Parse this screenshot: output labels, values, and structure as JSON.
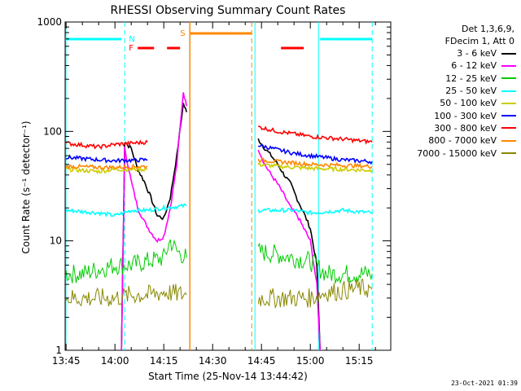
{
  "chart_data": {
    "type": "line",
    "title": "RHESSI Observing Summary Count Rates",
    "xlabel": "Start Time (25-Nov-14 13:44:42)",
    "ylabel": "Count Rate (s⁻¹ detector⁻¹)",
    "y_scale": "log",
    "ylim": [
      1,
      1000
    ],
    "xlim": [
      "13:44",
      "15:25"
    ],
    "x_ticks": [
      "13:45",
      "14:00",
      "14:15",
      "14:30",
      "14:45",
      "15:00",
      "15:15"
    ],
    "y_ticks": [
      "1",
      "10",
      "100",
      "1000"
    ],
    "legend_header": [
      "Det 1,3,6,9,",
      "FDecim 1, Att 0"
    ],
    "legend_position": "right",
    "flags": {
      "N_label": "N",
      "F_label": "F",
      "S_label": "S",
      "saa_start": "14:23",
      "saa_end": "14:42",
      "night_end": "14:03",
      "night_start": "14:43",
      "night2_end": "15:03",
      "night2_start": "15:19",
      "flare_segments": [
        [
          "14:07",
          "14:12"
        ],
        [
          "14:16",
          "14:20"
        ],
        [
          "14:51",
          "14:58"
        ]
      ]
    },
    "series": [
      {
        "name": "3 - 6 keV",
        "color": "#000000",
        "points": [
          [
            "14:02",
            1
          ],
          [
            "14:03",
            80
          ],
          [
            "14:05",
            70
          ],
          [
            "14:07",
            45
          ],
          [
            "14:09",
            35
          ],
          [
            "14:11",
            25
          ],
          [
            "14:13",
            17
          ],
          [
            "14:15",
            16
          ],
          [
            "14:17",
            25
          ],
          [
            "14:19",
            60
          ],
          [
            "14:21",
            180
          ],
          [
            "14:22",
            150
          ],
          [
            "14:44",
            85
          ],
          [
            "14:46",
            70
          ],
          [
            "14:48",
            60
          ],
          [
            "14:50",
            50
          ],
          [
            "14:52",
            40
          ],
          [
            "14:54",
            33
          ],
          [
            "14:56",
            24
          ],
          [
            "14:58",
            18
          ],
          [
            "15:00",
            13
          ],
          [
            "15:02",
            6
          ],
          [
            "15:03",
            1
          ]
        ]
      },
      {
        "name": "6 - 12 keV",
        "color": "#ff00ff",
        "points": [
          [
            "14:02",
            1
          ],
          [
            "14:03",
            70
          ],
          [
            "14:05",
            35
          ],
          [
            "14:07",
            20
          ],
          [
            "14:09",
            15
          ],
          [
            "14:11",
            12
          ],
          [
            "14:13",
            10
          ],
          [
            "14:15",
            11
          ],
          [
            "14:17",
            20
          ],
          [
            "14:19",
            50
          ],
          [
            "14:21",
            230
          ],
          [
            "14:22",
            170
          ],
          [
            "14:44",
            70
          ],
          [
            "14:46",
            50
          ],
          [
            "14:48",
            40
          ],
          [
            "14:50",
            33
          ],
          [
            "14:52",
            26
          ],
          [
            "14:54",
            20
          ],
          [
            "14:56",
            17
          ],
          [
            "14:58",
            13
          ],
          [
            "15:00",
            10
          ],
          [
            "15:02",
            4
          ],
          [
            "15:03",
            1
          ]
        ]
      },
      {
        "name": "12 - 25 keV",
        "color": "#00cc00",
        "points": [
          [
            "13:45",
            5
          ],
          [
            "13:50",
            5
          ],
          [
            "13:55",
            5.5
          ],
          [
            "14:00",
            6
          ],
          [
            "14:05",
            6
          ],
          [
            "14:10",
            6.5
          ],
          [
            "14:15",
            7
          ],
          [
            "14:17",
            10
          ],
          [
            "14:19",
            8
          ],
          [
            "14:22",
            7
          ],
          [
            "14:44",
            8
          ],
          [
            "14:50",
            7.5
          ],
          [
            "14:55",
            7
          ],
          [
            "15:00",
            6.5
          ],
          [
            "15:05",
            5
          ],
          [
            "15:10",
            5
          ],
          [
            "15:15",
            5
          ],
          [
            "15:19",
            5
          ]
        ]
      },
      {
        "name": "25 - 50 keV",
        "color": "#00ffff",
        "points": [
          [
            "13:45",
            19
          ],
          [
            "13:55",
            18
          ],
          [
            "14:00",
            17
          ],
          [
            "14:05",
            19
          ],
          [
            "14:10",
            19
          ],
          [
            "14:15",
            20
          ],
          [
            "14:22",
            21
          ],
          [
            "14:44",
            19
          ],
          [
            "14:50",
            19
          ],
          [
            "14:55",
            19
          ],
          [
            "15:00",
            18
          ],
          [
            "15:10",
            19
          ],
          [
            "15:19",
            18
          ]
        ]
      },
      {
        "name": "50 - 100 keV",
        "color": "#cccc00",
        "points": [
          [
            "13:45",
            45
          ],
          [
            "13:55",
            43
          ],
          [
            "14:00",
            45
          ],
          [
            "14:10",
            45
          ],
          [
            "14:22",
            46
          ],
          [
            "14:44",
            50
          ],
          [
            "14:50",
            48
          ],
          [
            "15:00",
            46
          ],
          [
            "15:10",
            45
          ],
          [
            "15:19",
            44
          ]
        ]
      },
      {
        "name": "100 - 300 keV",
        "color": "#0000ff",
        "points": [
          [
            "13:45",
            58
          ],
          [
            "13:55",
            55
          ],
          [
            "14:00",
            54
          ],
          [
            "14:10",
            55
          ],
          [
            "14:22",
            57
          ],
          [
            "14:44",
            75
          ],
          [
            "14:50",
            68
          ],
          [
            "14:55",
            63
          ],
          [
            "15:00",
            60
          ],
          [
            "15:10",
            55
          ],
          [
            "15:19",
            53
          ]
        ]
      },
      {
        "name": "300 - 800 keV",
        "color": "#ff0000",
        "points": [
          [
            "13:45",
            78
          ],
          [
            "13:50",
            75
          ],
          [
            "13:55",
            72
          ],
          [
            "14:00",
            76
          ],
          [
            "14:10",
            80
          ],
          [
            "14:22",
            85
          ],
          [
            "14:44",
            110
          ],
          [
            "14:50",
            100
          ],
          [
            "14:55",
            95
          ],
          [
            "15:00",
            90
          ],
          [
            "15:10",
            85
          ],
          [
            "15:19",
            80
          ]
        ]
      },
      {
        "name": "800 - 7000 keV",
        "color": "#ff8800",
        "points": [
          [
            "13:45",
            48
          ],
          [
            "13:55",
            47
          ],
          [
            "14:00",
            47
          ],
          [
            "14:10",
            48
          ],
          [
            "14:22",
            50
          ],
          [
            "14:44",
            55
          ],
          [
            "14:50",
            53
          ],
          [
            "15:00",
            50
          ],
          [
            "15:10",
            49
          ],
          [
            "15:19",
            48
          ]
        ]
      },
      {
        "name": "7000 - 15000 keV",
        "color": "#888800",
        "points": [
          [
            "13:45",
            3
          ],
          [
            "13:50",
            3
          ],
          [
            "13:55",
            3
          ],
          [
            "14:00",
            3
          ],
          [
            "14:05",
            3.2
          ],
          [
            "14:10",
            3.2
          ],
          [
            "14:15",
            3.4
          ],
          [
            "14:22",
            3.2
          ],
          [
            "14:44",
            3
          ],
          [
            "14:50",
            3
          ],
          [
            "14:55",
            3
          ],
          [
            "15:00",
            3
          ],
          [
            "15:05",
            3.4
          ],
          [
            "15:10",
            3.5
          ],
          [
            "15:15",
            3.7
          ],
          [
            "15:19",
            3.6
          ]
        ]
      }
    ]
  },
  "footer_stamp": "23-Oct-2021 01:39"
}
